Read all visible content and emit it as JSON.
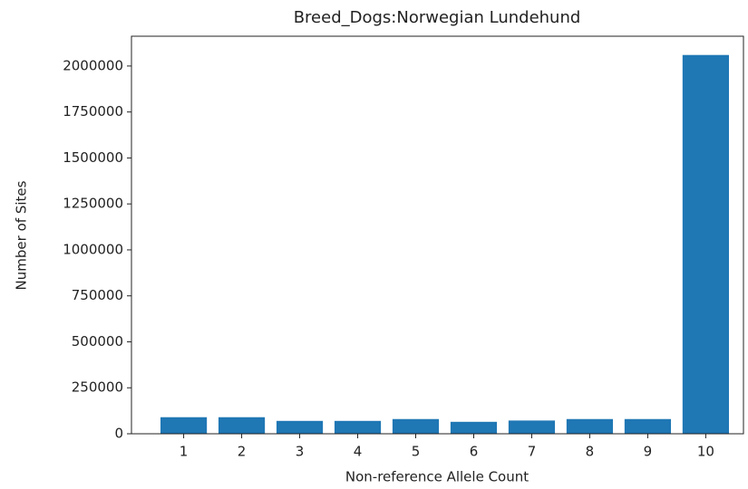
{
  "chart_data": {
    "type": "bar",
    "title": "Breed_Dogs:Norwegian Lundehund",
    "x_label": "Non-reference Allele Count",
    "y_label": "Number of Sites",
    "x": [
      1,
      2,
      3,
      4,
      5,
      6,
      7,
      8,
      9,
      10
    ],
    "values": [
      90000,
      90000,
      70000,
      70000,
      80000,
      65000,
      72000,
      80000,
      80000,
      2060000
    ],
    "color": "#1f77b4",
    "xlim": [
      0.1,
      10.65
    ],
    "xticks": [
      1,
      2,
      3,
      4,
      5,
      6,
      7,
      8,
      9,
      10
    ],
    "ylim": [
      0,
      2162000
    ],
    "yticks": [
      0,
      250000,
      500000,
      750000,
      1000000,
      1250000,
      1500000,
      1750000,
      2000000
    ],
    "grid": false
  }
}
